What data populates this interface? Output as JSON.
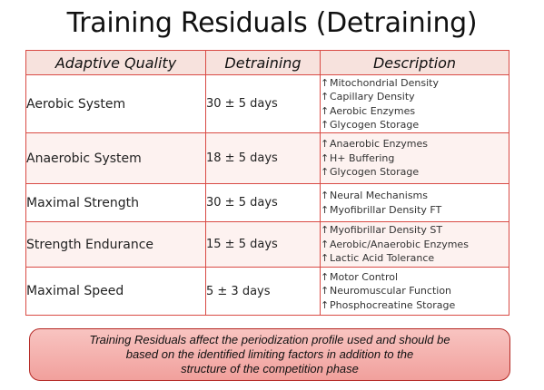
{
  "title": "Training Residuals (Detraining)",
  "table": {
    "headers": [
      "Adaptive Quality",
      "Detraining",
      "Description"
    ],
    "arrow_glyph": "↑",
    "rows": [
      {
        "quality": "Aerobic System",
        "detraining": "30 ± 5 days",
        "description": [
          "Mitochondrial Density",
          "Capillary Density",
          "Aerobic Enzymes",
          "Glycogen Storage"
        ]
      },
      {
        "quality": "Anaerobic System",
        "detraining": "18 ± 5 days",
        "description": [
          "Anaerobic Enzymes",
          "H+ Buffering",
          "Glycogen Storage"
        ]
      },
      {
        "quality": "Maximal Strength",
        "detraining": "30 ± 5 days",
        "description": [
          "Neural Mechanisms",
          "Myofibrillar Density FT"
        ]
      },
      {
        "quality": "Strength Endurance",
        "detraining": "15 ± 5 days",
        "description": [
          "Myofibrillar Density ST",
          "Aerobic/Anaerobic Enzymes",
          "Lactic Acid Tolerance"
        ]
      },
      {
        "quality": "Maximal Speed",
        "detraining": "5 ± 3 days",
        "description": [
          "Motor Control",
          "Neuromuscular Function",
          "Phosphocreatine Storage"
        ]
      }
    ]
  },
  "note": {
    "lines": [
      "Training Residuals affect the periodization profile used and should be",
      "based on the identified limiting factors in addition to the",
      "structure of the competition phase"
    ]
  },
  "colors": {
    "table_border": "#d94b45",
    "header_fill": "#f7e2dd",
    "note_fill": "#f3aca8",
    "note_border": "#b52a26"
  }
}
